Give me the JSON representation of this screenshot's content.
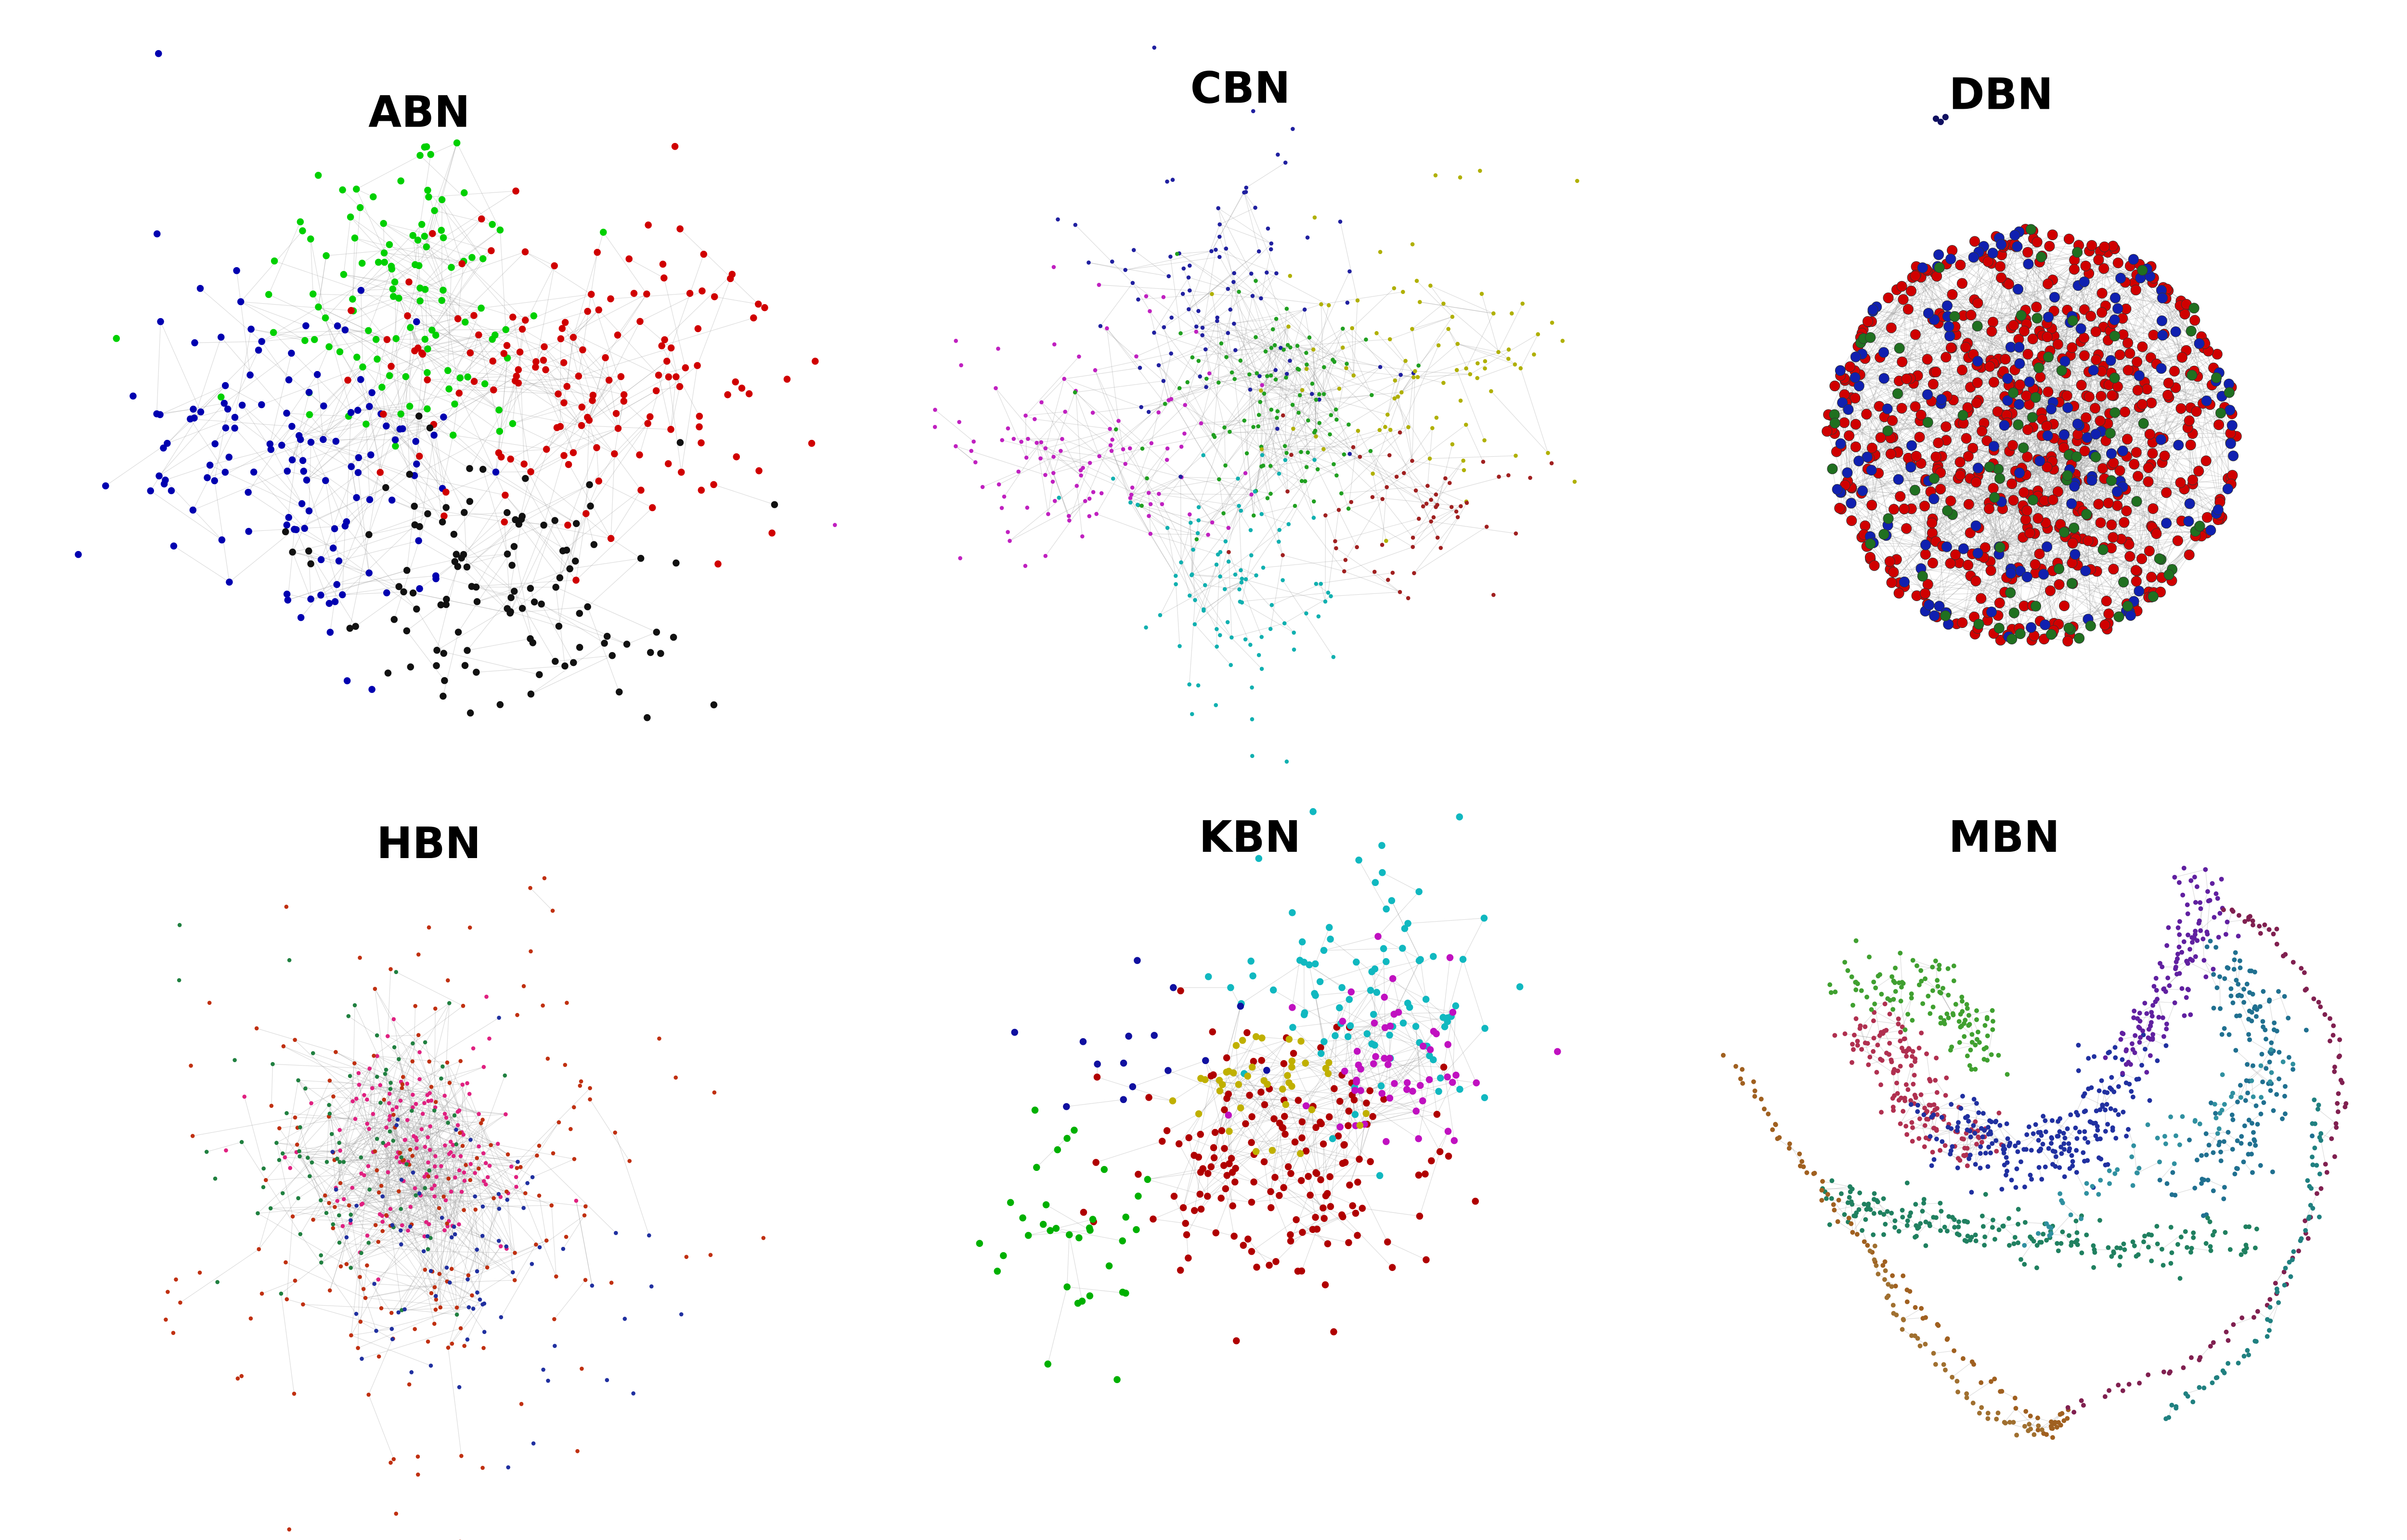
{
  "panels": [
    {
      "title": "ABN"
    },
    {
      "title": "CBN"
    },
    {
      "title": "DBN"
    },
    {
      "title": "HBN"
    },
    {
      "title": "KBN"
    },
    {
      "title": "MBN"
    }
  ]
}
